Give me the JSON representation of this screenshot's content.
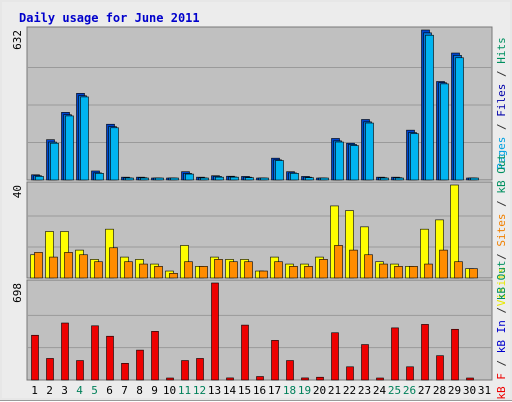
{
  "chart_data": {
    "type": "bar",
    "title": "Daily usage for June 2011",
    "categories": [
      "1",
      "2",
      "3",
      "4",
      "5",
      "6",
      "7",
      "8",
      "9",
      "10",
      "11",
      "12",
      "13",
      "14",
      "15",
      "16",
      "17",
      "18",
      "19",
      "20",
      "21",
      "22",
      "23",
      "24",
      "25",
      "26",
      "27",
      "28",
      "29",
      "30",
      "31"
    ],
    "weekend_days": [
      "4",
      "5",
      "11",
      "12",
      "18",
      "19",
      "25",
      "26"
    ],
    "grid": true,
    "panels": [
      {
        "id": "hits",
        "ymax_label": "632",
        "ylim": [
          0,
          632
        ],
        "right_labels": [
          {
            "text": "Pages",
            "color": "#00a0e0"
          },
          {
            "text": " / ",
            "color": "#333333"
          },
          {
            "text": "Files",
            "color": "#0000aa"
          },
          {
            "text": " / ",
            "color": "#333333"
          },
          {
            "text": "Hits",
            "color": "#009060"
          }
        ],
        "series": [
          {
            "name": "Hits",
            "color": "#0044cc",
            "values": [
              22,
              170,
              285,
              365,
              38,
              235,
              12,
              12,
              8,
              8,
              35,
              12,
              18,
              16,
              15,
              8,
              92,
              35,
              15,
              5,
              175,
              155,
              255,
              12,
              12,
              210,
              632,
              415,
              535,
              5,
              0
            ]
          },
          {
            "name": "Files",
            "color": "#0077dd",
            "values": [
              18,
              160,
              275,
              355,
              30,
              225,
              9,
              10,
              6,
              6,
              28,
              9,
              15,
              13,
              12,
              6,
              85,
              30,
              12,
              4,
              165,
              150,
              245,
              10,
              10,
              200,
              620,
              410,
              525,
              4,
              0
            ]
          },
          {
            "name": "Pages",
            "color": "#00b4f0",
            "values": [
              15,
              155,
              270,
              350,
              28,
              220,
              8,
              8,
              5,
              5,
              25,
              8,
              12,
              12,
              10,
              5,
              82,
              28,
              10,
              3,
              160,
              145,
              240,
              8,
              8,
              195,
              610,
              405,
              515,
              3,
              0
            ]
          }
        ]
      },
      {
        "id": "visits",
        "ymax_label": "40",
        "ylim": [
          0,
          40
        ],
        "right_labels": [
          {
            "text": "Visits",
            "color": "#e8e800"
          },
          {
            "text": " / ",
            "color": "#333333"
          },
          {
            "text": "Sites",
            "color": "#f08000"
          },
          {
            "text": " / ",
            "color": "#333333"
          },
          {
            "text": "kB Out",
            "color": "#009060"
          }
        ],
        "series": [
          {
            "name": "Visits",
            "color": "#ffff00",
            "values": [
              10,
              20,
              20,
              12,
              8,
              21,
              9,
              8,
              6,
              3,
              14,
              5,
              9,
              8,
              8,
              3,
              9,
              6,
              6,
              9,
              31,
              29,
              22,
              7,
              6,
              5,
              21,
              25,
              40,
              4,
              0
            ]
          },
          {
            "name": "Sites",
            "color": "#ff8c00",
            "values": [
              11,
              9,
              11,
              10,
              7,
              13,
              7,
              6,
              5,
              2,
              7,
              5,
              8,
              7,
              7,
              3,
              7,
              5,
              5,
              8,
              14,
              12,
              10,
              6,
              5,
              5,
              6,
              12,
              7,
              4,
              0
            ]
          }
        ]
      },
      {
        "id": "kbytes",
        "ymax_label": "698",
        "ylim": [
          0,
          698
        ],
        "right_labels": [
          {
            "text": "kB F",
            "color": "#ee0000"
          },
          {
            "text": " / ",
            "color": "#333333"
          },
          {
            "text": "kB In",
            "color": "#0000cc"
          },
          {
            "text": " / ",
            "color": "#333333"
          },
          {
            "text": "kB Out",
            "color": "#009060"
          }
        ],
        "series": [
          {
            "name": "kB F",
            "color": "#ee0000",
            "values": [
              322,
              155,
              410,
              140,
              390,
              315,
              120,
              215,
              350,
              10,
              140,
              155,
              698,
              15,
              395,
              25,
              285,
              140,
              15,
              20,
              340,
              95,
              255,
              10,
              375,
              95,
              400,
              175,
              365,
              10,
              0
            ]
          }
        ]
      }
    ]
  }
}
